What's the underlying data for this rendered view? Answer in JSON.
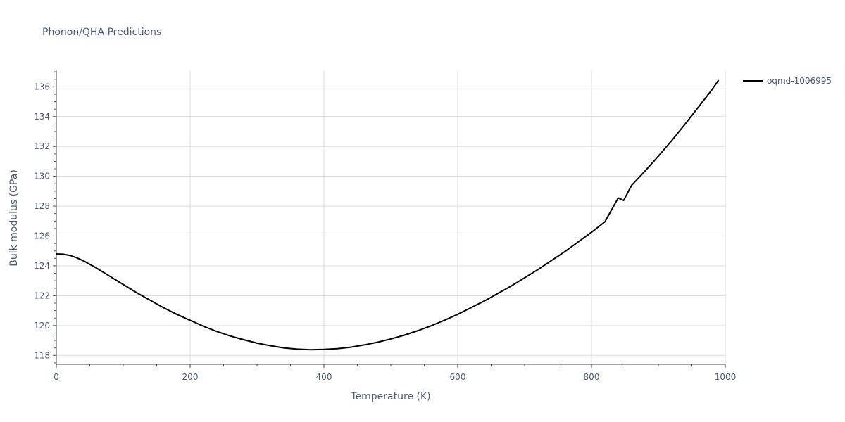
{
  "chart_data": {
    "type": "line",
    "title": "Phonon/QHA Predictions",
    "xlabel": "Temperature (K)",
    "ylabel": "Bulk modulus (GPa)",
    "xlim": [
      0,
      1000
    ],
    "ylim": [
      117.4,
      137.1
    ],
    "xticks": [
      0,
      200,
      400,
      600,
      800,
      1000
    ],
    "yticks": [
      118,
      120,
      122,
      124,
      126,
      128,
      130,
      132,
      134,
      136
    ],
    "grid": true,
    "legend_position": "top-right",
    "series": [
      {
        "name": "oqmd-1006995",
        "color": "#000000",
        "x": [
          0,
          10,
          20,
          30,
          40,
          60,
          80,
          100,
          120,
          140,
          160,
          180,
          200,
          220,
          240,
          260,
          280,
          300,
          320,
          340,
          360,
          380,
          400,
          420,
          440,
          460,
          480,
          500,
          520,
          540,
          560,
          580,
          600,
          620,
          640,
          660,
          680,
          700,
          720,
          740,
          760,
          780,
          800,
          820,
          840,
          848,
          860,
          880,
          900,
          920,
          940,
          960,
          980,
          990
        ],
        "y": [
          124.8,
          124.78,
          124.7,
          124.55,
          124.35,
          123.85,
          123.3,
          122.75,
          122.2,
          121.7,
          121.2,
          120.75,
          120.35,
          119.95,
          119.6,
          119.3,
          119.05,
          118.82,
          118.65,
          118.5,
          118.42,
          118.38,
          118.4,
          118.45,
          118.55,
          118.7,
          118.88,
          119.1,
          119.35,
          119.65,
          119.98,
          120.35,
          120.75,
          121.2,
          121.65,
          122.15,
          122.65,
          123.2,
          123.75,
          124.35,
          124.95,
          125.6,
          126.25,
          126.95,
          128.55,
          128.38,
          129.4,
          130.35,
          131.35,
          132.4,
          133.5,
          134.65,
          135.8,
          136.45
        ]
      }
    ]
  }
}
